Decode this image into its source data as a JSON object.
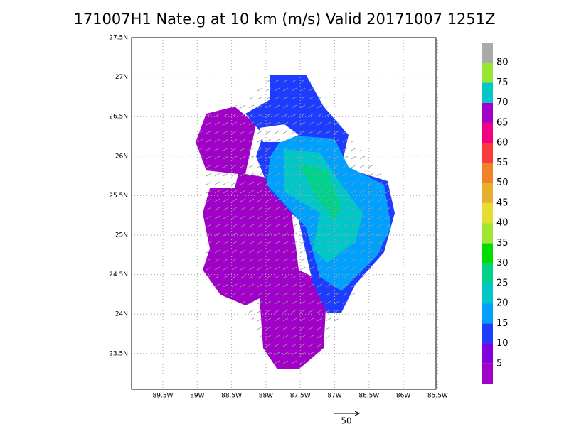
{
  "header": {
    "title": "171007H1 Nate.g at 10 km (m/s) Valid 20171007 1251Z"
  },
  "map": {
    "lat_labels": [
      "27.5N",
      "27N",
      "26.5N",
      "26N",
      "25.5N",
      "25N",
      "24.5N",
      "24N",
      "23.5N"
    ],
    "lon_labels": [
      "89.5W",
      "89W",
      "88.5W",
      "88W",
      "87.5W",
      "87W",
      "86.5W",
      "86W",
      "85.5W"
    ],
    "vector_reference": "50"
  },
  "colorbar": {
    "colors": [
      "#a000c8",
      "#8200dc",
      "#1e3cff",
      "#00a0ff",
      "#00c8c8",
      "#00d28c",
      "#00dc00",
      "#a0e632",
      "#e6dc32",
      "#e6af2d",
      "#f08228",
      "#fa3c3c",
      "#f00082",
      "#a000c8",
      "#00c8c8",
      "#96e632",
      "#aaaaaa"
    ],
    "labels": [
      "5",
      "10",
      "15",
      "20",
      "25",
      "30",
      "35",
      "40",
      "45",
      "50",
      "55",
      "60",
      "65",
      "70",
      "75",
      "80"
    ]
  }
}
